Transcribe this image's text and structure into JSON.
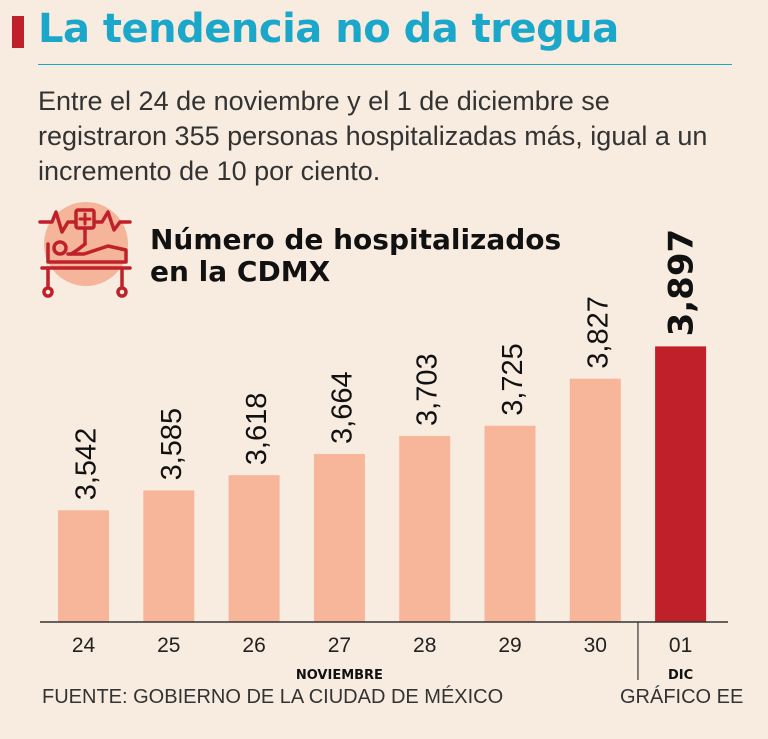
{
  "header": {
    "title": "La tendencia no da tregua",
    "subtitle": "Entre el 24 de noviembre y el 1 de diciembre se registraron 355 personas hospitalizadas más, igual a un incremento de 10 por ciento."
  },
  "colors": {
    "accent_red": "#c0202a",
    "title_blue": "#1aa7c9",
    "bar_peach": "#f7b59a",
    "icon_circle": "#f4b59a"
  },
  "icon": {
    "name": "hospital-bed-icon"
  },
  "chart_data": {
    "type": "bar",
    "title_lines": [
      "Número de hospitalizados",
      "en la CDMX"
    ],
    "categories": [
      "24",
      "25",
      "26",
      "27",
      "28",
      "29",
      "30",
      "01"
    ],
    "values": [
      3542,
      3585,
      3618,
      3664,
      3703,
      3725,
      3827,
      3897
    ],
    "value_labels": [
      "3,542",
      "3,585",
      "3,618",
      "3,664",
      "3,703",
      "3,725",
      "3,827",
      "3,897"
    ],
    "highlight_index": 7,
    "month_labels": [
      {
        "label": "NOVIEMBRE",
        "from": 0,
        "to": 6
      },
      {
        "label": "DIC",
        "from": 7,
        "to": 7
      }
    ],
    "ylim": [
      3300,
      3900
    ],
    "xlabel": "",
    "ylabel": "",
    "grid": false
  },
  "footer": {
    "source": "FUENTE: GOBIERNO DE LA CIUDAD DE MÉXICO",
    "credit": "GRÁFICO EE"
  }
}
